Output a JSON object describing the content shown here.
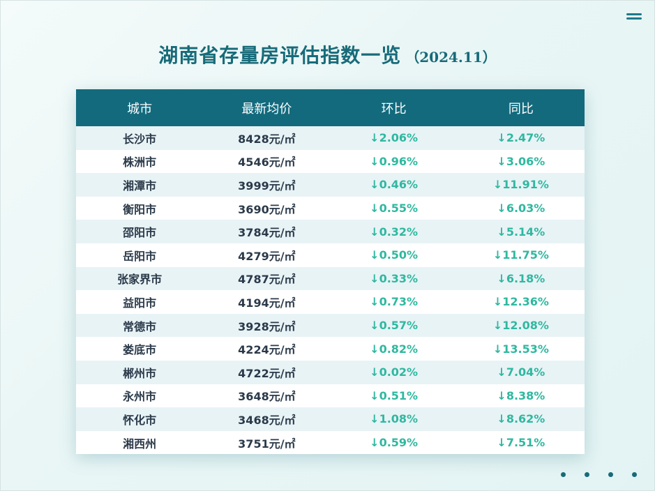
{
  "title": {
    "main": "湖南省存量房评估指数一览",
    "date": "（2024.11）"
  },
  "table": {
    "headers": [
      "城市",
      "最新均价",
      "环比",
      "同比"
    ],
    "rows": [
      {
        "city": "长沙市",
        "price": "8428元/㎡",
        "mom": "↓2.06%",
        "yoy": "↓2.47%"
      },
      {
        "city": "株洲市",
        "price": "4546元/㎡",
        "mom": "↓0.96%",
        "yoy": "↓3.06%"
      },
      {
        "city": "湘潭市",
        "price": "3999元/㎡",
        "mom": "↓0.46%",
        "yoy": "↓11.91%"
      },
      {
        "city": "衡阳市",
        "price": "3690元/㎡",
        "mom": "↓0.55%",
        "yoy": "↓6.03%"
      },
      {
        "city": "邵阳市",
        "price": "3784元/㎡",
        "mom": "↓0.32%",
        "yoy": "↓5.14%"
      },
      {
        "city": "岳阳市",
        "price": "4279元/㎡",
        "mom": "↓0.50%",
        "yoy": "↓11.75%"
      },
      {
        "city": "张家界市",
        "price": "4787元/㎡",
        "mom": "↓0.33%",
        "yoy": "↓6.18%"
      },
      {
        "city": "益阳市",
        "price": "4194元/㎡",
        "mom": "↓0.73%",
        "yoy": "↓12.36%"
      },
      {
        "city": "常德市",
        "price": "3928元/㎡",
        "mom": "↓0.57%",
        "yoy": "↓12.08%"
      },
      {
        "city": "娄底市",
        "price": "4224元/㎡",
        "mom": "↓0.82%",
        "yoy": "↓13.53%"
      },
      {
        "city": "郴州市",
        "price": "4722元/㎡",
        "mom": "↓0.02%",
        "yoy": "↓7.04%"
      },
      {
        "city": "永州市",
        "price": "3648元/㎡",
        "mom": "↓0.51%",
        "yoy": "↓8.38%"
      },
      {
        "city": "怀化市",
        "price": "3468元/㎡",
        "mom": "↓1.08%",
        "yoy": "↓8.62%"
      },
      {
        "city": "湘西州",
        "price": "3751元/㎡",
        "mom": "↓0.59%",
        "yoy": "↓7.51%"
      }
    ]
  },
  "icons": {
    "menu": "menu-icon",
    "pagination": "pagination-dot"
  },
  "colors": {
    "accent": "#176b79",
    "header_bg": "#136a7d",
    "change_text": "#2fb8a0",
    "row_alt": "#e8f3f6"
  }
}
